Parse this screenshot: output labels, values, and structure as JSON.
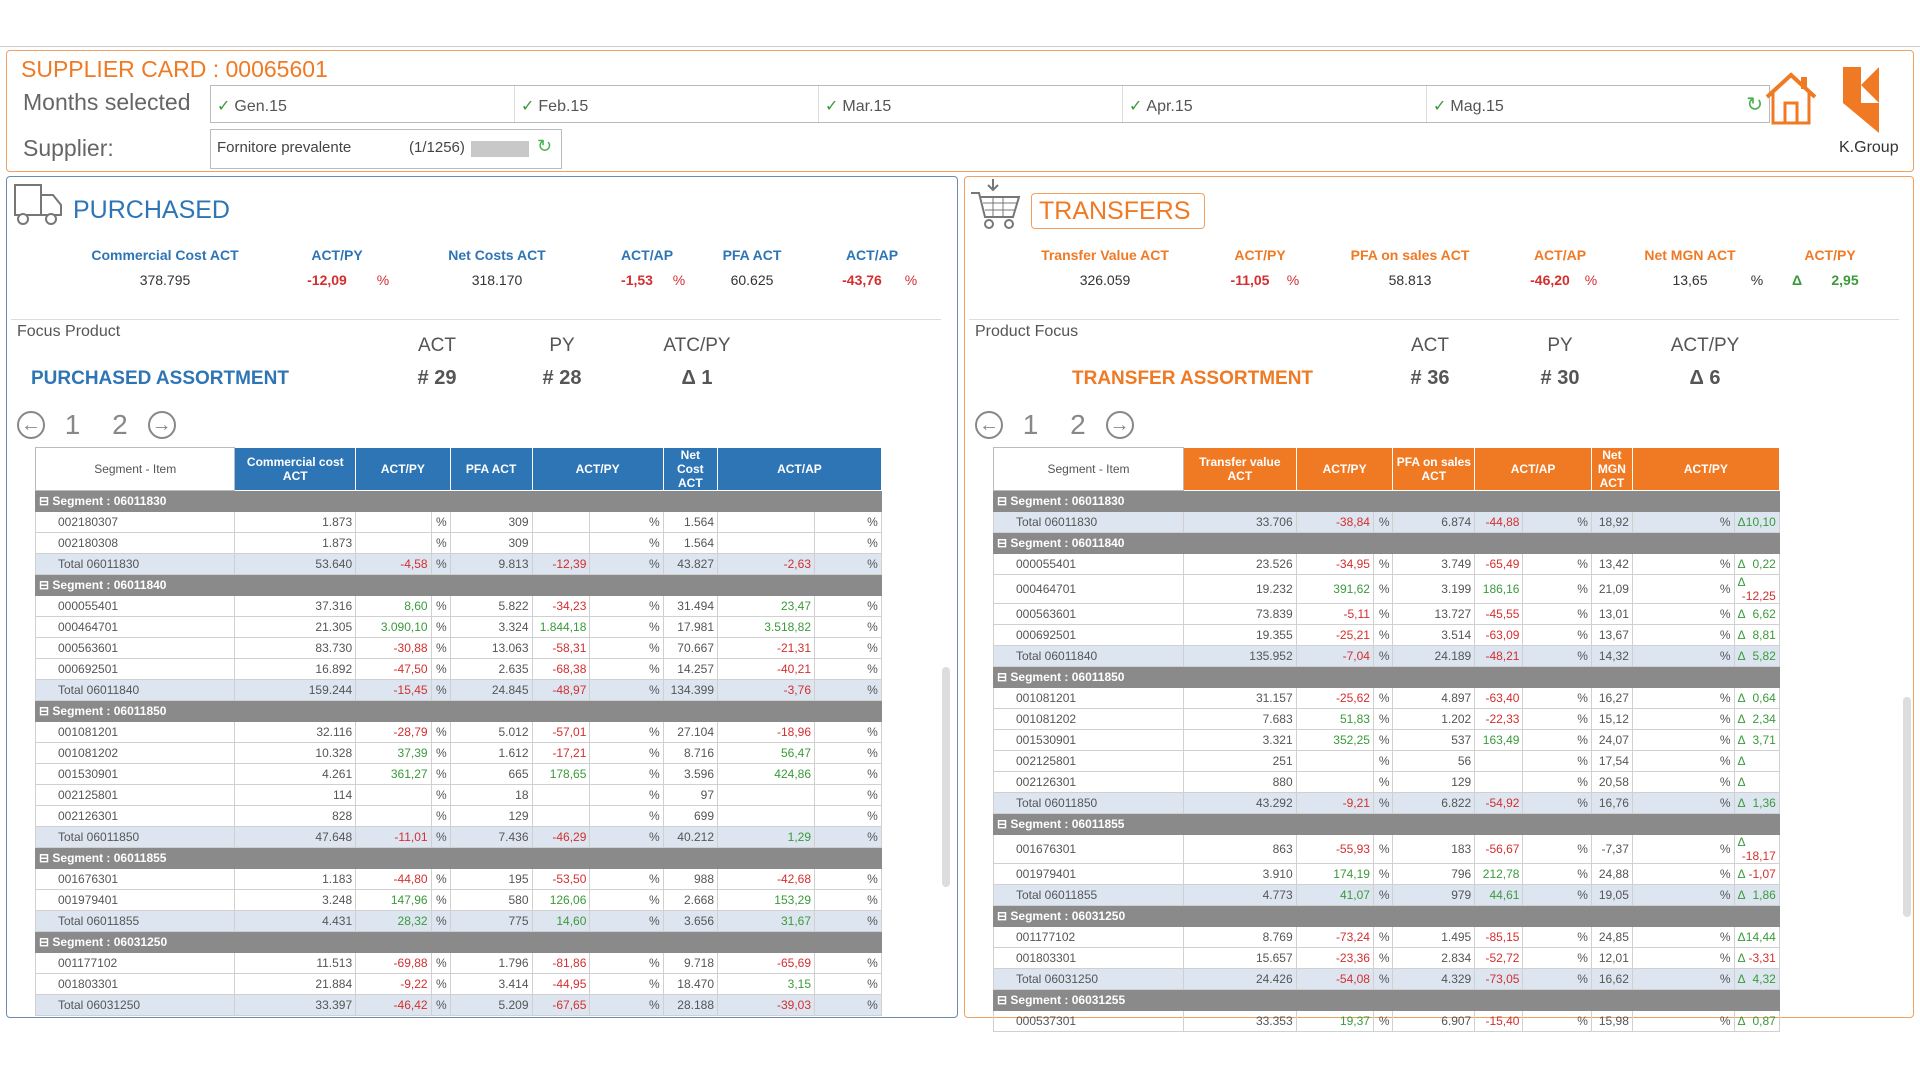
{
  "header": {
    "title": "SUPPLIER CARD : 00065601",
    "months_label": "Months selected",
    "supplier_label": "Supplier:",
    "months": [
      "Gen.15",
      "Feb.15",
      "Mar.15",
      "Apr.15",
      "Mag.15"
    ],
    "supplier_value": "Fornitore prevalente",
    "supplier_count": "(1/1256)",
    "logo_text": "K.Group"
  },
  "purchased": {
    "title": "PURCHASED",
    "kpis": [
      {
        "label": "Commercial Cost ACT",
        "value": "378.795",
        "pct": ""
      },
      {
        "label": "ACT/PY",
        "value": "-12,09",
        "pct": "%"
      },
      {
        "label": "Net Costs ACT",
        "value": "318.170",
        "pct": ""
      },
      {
        "label": "ACT/AP",
        "value": "-1,53",
        "pct": "%"
      },
      {
        "label": "PFA ACT",
        "value": "60.625",
        "pct": ""
      },
      {
        "label": "ACT/AP",
        "value": "-43,76",
        "pct": "%"
      }
    ],
    "focus_label": "Focus Product",
    "col_act": "ACT",
    "col_py": "PY",
    "col_delta": "ATC/PY",
    "assortment": "PURCHASED ASSORTMENT",
    "act": "# 29",
    "py": "# 28",
    "delta": "Δ 1",
    "pages": [
      "1",
      "2"
    ],
    "table_headers": [
      "Segment - Item",
      "Commercial cost ACT",
      "ACT/PY",
      "PFA ACT",
      "ACT/PY",
      "Net Cost ACT",
      "ACT/AP"
    ],
    "rows": [
      {
        "t": "seg",
        "c": [
          "Segment : 06011830"
        ]
      },
      {
        "t": "row",
        "c": [
          "002180307",
          "1.873",
          "",
          "309",
          "",
          "1.564",
          ""
        ]
      },
      {
        "t": "row",
        "c": [
          "002180308",
          "1.873",
          "",
          "309",
          "",
          "1.564",
          ""
        ]
      },
      {
        "t": "tot",
        "c": [
          "Total 06011830",
          "53.640",
          "-4,58",
          "9.813",
          "-12,39",
          "43.827",
          "-2,63"
        ]
      },
      {
        "t": "seg",
        "c": [
          "Segment : 06011840"
        ]
      },
      {
        "t": "row",
        "c": [
          "000055401",
          "37.316",
          "8,60",
          "5.822",
          "-34,23",
          "31.494",
          "23,47"
        ]
      },
      {
        "t": "row",
        "c": [
          "000464701",
          "21.305",
          "3.090,10",
          "3.324",
          "1.844,18",
          "17.981",
          "3.518,82"
        ]
      },
      {
        "t": "row",
        "c": [
          "000563601",
          "83.730",
          "-30,88",
          "13.063",
          "-58,31",
          "70.667",
          "-21,31"
        ]
      },
      {
        "t": "row",
        "c": [
          "000692501",
          "16.892",
          "-47,50",
          "2.635",
          "-68,38",
          "14.257",
          "-40,21"
        ]
      },
      {
        "t": "tot",
        "c": [
          "Total 06011840",
          "159.244",
          "-15,45",
          "24.845",
          "-48,97",
          "134.399",
          "-3,76"
        ]
      },
      {
        "t": "seg",
        "c": [
          "Segment : 06011850"
        ]
      },
      {
        "t": "row",
        "c": [
          "001081201",
          "32.116",
          "-28,79",
          "5.012",
          "-57,01",
          "27.104",
          "-18,96"
        ]
      },
      {
        "t": "row",
        "c": [
          "001081202",
          "10.328",
          "37,39",
          "1.612",
          "-17,21",
          "8.716",
          "56,47"
        ]
      },
      {
        "t": "row",
        "c": [
          "001530901",
          "4.261",
          "361,27",
          "665",
          "178,65",
          "3.596",
          "424,86"
        ]
      },
      {
        "t": "row",
        "c": [
          "002125801",
          "114",
          "",
          "18",
          "",
          "97",
          ""
        ]
      },
      {
        "t": "row",
        "c": [
          "002126301",
          "828",
          "",
          "129",
          "",
          "699",
          ""
        ]
      },
      {
        "t": "tot",
        "c": [
          "Total 06011850",
          "47.648",
          "-11,01",
          "7.436",
          "-46,29",
          "40.212",
          "1,29"
        ]
      },
      {
        "t": "seg",
        "c": [
          "Segment : 06011855"
        ]
      },
      {
        "t": "row",
        "c": [
          "001676301",
          "1.183",
          "-44,80",
          "195",
          "-53,50",
          "988",
          "-42,68"
        ]
      },
      {
        "t": "row",
        "c": [
          "001979401",
          "3.248",
          "147,96",
          "580",
          "126,06",
          "2.668",
          "153,29"
        ]
      },
      {
        "t": "tot",
        "c": [
          "Total 06011855",
          "4.431",
          "28,32",
          "775",
          "14,60",
          "3.656",
          "31,67"
        ]
      },
      {
        "t": "seg",
        "c": [
          "Segment : 06031250"
        ]
      },
      {
        "t": "row",
        "c": [
          "001177102",
          "11.513",
          "-69,88",
          "1.796",
          "-81,86",
          "9.718",
          "-65,69"
        ]
      },
      {
        "t": "row",
        "c": [
          "001803301",
          "21.884",
          "-9,22",
          "3.414",
          "-44,95",
          "18.470",
          "3,15"
        ]
      },
      {
        "t": "tot",
        "c": [
          "Total 06031250",
          "33.397",
          "-46,42",
          "5.209",
          "-67,65",
          "28.188",
          "-39,03"
        ]
      }
    ]
  },
  "transfers": {
    "title": "TRANSFERS",
    "kpis": [
      {
        "label": "Transfer Value ACT",
        "value": "326.059",
        "pct": ""
      },
      {
        "label": "ACT/PY",
        "value": "-11,05",
        "pct": "%"
      },
      {
        "label": "PFA on sales ACT",
        "value": "58.813",
        "pct": ""
      },
      {
        "label": "ACT/AP",
        "value": "-46,20",
        "pct": "%"
      },
      {
        "label": "Net MGN ACT",
        "value": "13,65",
        "pct": "%"
      },
      {
        "label": "ACT/PY",
        "value": "2,95",
        "pct": "Δ"
      }
    ],
    "focus_label": "Product Focus",
    "col_act": "ACT",
    "col_py": "PY",
    "col_delta": "ACT/PY",
    "assortment": "TRANSFER ASSORTMENT",
    "act": "# 36",
    "py": "# 30",
    "delta": "Δ 6",
    "pages": [
      "1",
      "2"
    ],
    "table_headers": [
      "Segment - Item",
      "Transfer value ACT",
      "ACT/PY",
      "PFA on sales ACT",
      "ACT/AP",
      "Net MGN ACT",
      "ACT/PY"
    ],
    "rows": [
      {
        "t": "seg",
        "c": [
          "Segment : 06011830"
        ]
      },
      {
        "t": "tot",
        "c": [
          "Total 06011830",
          "33.706",
          "-38,84",
          "6.874",
          "-44,88",
          "18,92",
          "10,10"
        ]
      },
      {
        "t": "seg",
        "c": [
          "Segment : 06011840"
        ]
      },
      {
        "t": "row",
        "c": [
          "000055401",
          "23.526",
          "-34,95",
          "3.749",
          "-65,49",
          "13,42",
          "0,22"
        ]
      },
      {
        "t": "row",
        "c": [
          "000464701",
          "19.232",
          "391,62",
          "3.199",
          "186,16",
          "21,09",
          "-12,25"
        ]
      },
      {
        "t": "row",
        "c": [
          "000563601",
          "73.839",
          "-5,11",
          "13.727",
          "-45,55",
          "13,01",
          "6,62"
        ]
      },
      {
        "t": "row",
        "c": [
          "000692501",
          "19.355",
          "-25,21",
          "3.514",
          "-63,09",
          "13,67",
          "8,81"
        ]
      },
      {
        "t": "tot",
        "c": [
          "Total 06011840",
          "135.952",
          "-7,04",
          "24.189",
          "-48,21",
          "14,32",
          "5,82"
        ]
      },
      {
        "t": "seg",
        "c": [
          "Segment : 06011850"
        ]
      },
      {
        "t": "row",
        "c": [
          "001081201",
          "31.157",
          "-25,62",
          "4.897",
          "-63,40",
          "16,27",
          "0,64"
        ]
      },
      {
        "t": "row",
        "c": [
          "001081202",
          "7.683",
          "51,83",
          "1.202",
          "-22,33",
          "15,12",
          "2,34"
        ]
      },
      {
        "t": "row",
        "c": [
          "001530901",
          "3.321",
          "352,25",
          "537",
          "163,49",
          "24,07",
          "3,71"
        ]
      },
      {
        "t": "row",
        "c": [
          "002125801",
          "251",
          "",
          "56",
          "",
          "17,54",
          ""
        ]
      },
      {
        "t": "row",
        "c": [
          "002126301",
          "880",
          "",
          "129",
          "",
          "20,58",
          ""
        ]
      },
      {
        "t": "tot",
        "c": [
          "Total 06011850",
          "43.292",
          "-9,21",
          "6.822",
          "-54,92",
          "16,76",
          "1,36"
        ]
      },
      {
        "t": "seg",
        "c": [
          "Segment : 06011855"
        ]
      },
      {
        "t": "row",
        "c": [
          "001676301",
          "863",
          "-55,93",
          "183",
          "-56,67",
          "-7,37",
          "-18,17"
        ]
      },
      {
        "t": "row",
        "c": [
          "001979401",
          "3.910",
          "174,19",
          "796",
          "212,78",
          "24,88",
          "-1,07"
        ]
      },
      {
        "t": "tot",
        "c": [
          "Total 06011855",
          "4.773",
          "41,07",
          "979",
          "44,61",
          "19,05",
          "1,86"
        ]
      },
      {
        "t": "seg",
        "c": [
          "Segment : 06031250"
        ]
      },
      {
        "t": "row",
        "c": [
          "001177102",
          "8.769",
          "-73,24",
          "1.495",
          "-85,15",
          "24,85",
          "14,44"
        ]
      },
      {
        "t": "row",
        "c": [
          "001803301",
          "15.657",
          "-23,36",
          "2.834",
          "-52,72",
          "12,01",
          "-3,31"
        ]
      },
      {
        "t": "tot",
        "c": [
          "Total 06031250",
          "24.426",
          "-54,08",
          "4.329",
          "-73,05",
          "16,62",
          "4,32"
        ]
      },
      {
        "t": "seg",
        "c": [
          "Segment : 06031255"
        ]
      },
      {
        "t": "row",
        "c": [
          "000537301",
          "33.353",
          "19,37",
          "6.907",
          "-15,40",
          "15,98",
          "0,87"
        ]
      }
    ]
  },
  "colors": {
    "blue": "#2e75b6",
    "orange": "#f07a24",
    "red": "#d32f2f",
    "green": "#3a9a3a"
  }
}
